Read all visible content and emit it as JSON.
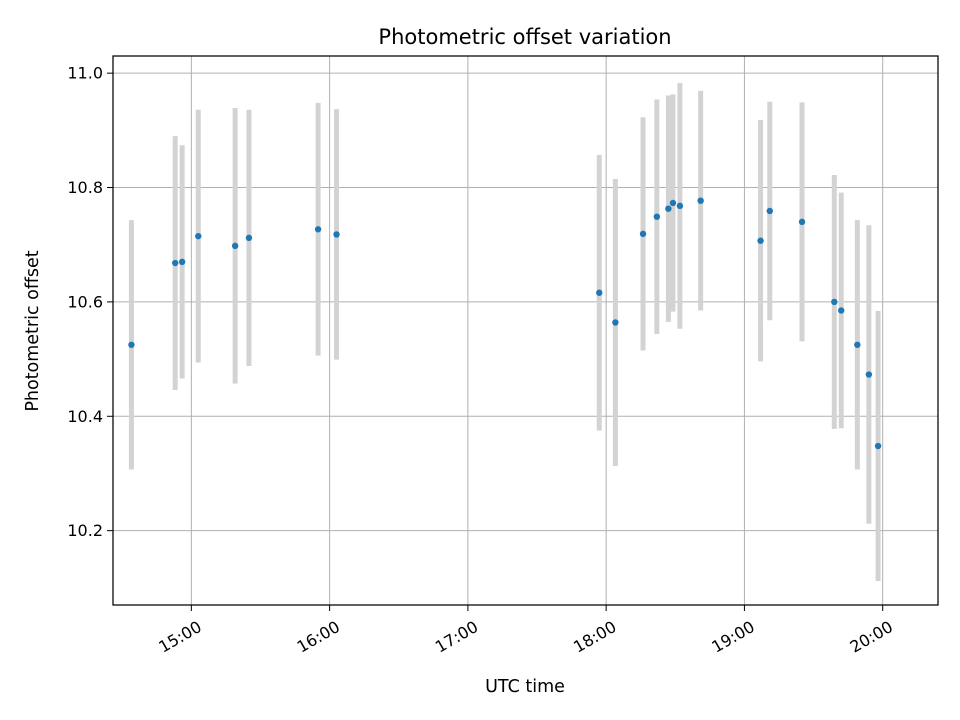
{
  "chart_data": {
    "type": "scatter",
    "title": "Photometric offset variation",
    "xlabel": "UTC time",
    "ylabel": "Photometric offset",
    "x_ticks": [
      "15:00",
      "16:00",
      "17:00",
      "18:00",
      "19:00",
      "20:00"
    ],
    "y_ticks": [
      "10.2",
      "10.4",
      "10.6",
      "10.8",
      "11.0"
    ],
    "xlim": [
      "14:26",
      "20:24"
    ],
    "ylim": [
      10.07,
      11.03
    ],
    "grid": true,
    "colors": {
      "points": "#1f77b4",
      "error_bars": "#d3d3d3",
      "grid": "#b0b0b0"
    },
    "points": [
      {
        "x": "14:34",
        "y": 10.525,
        "yerr": 0.218
      },
      {
        "x": "14:53",
        "y": 10.668,
        "yerr": 0.222
      },
      {
        "x": "14:56",
        "y": 10.67,
        "yerr": 0.204
      },
      {
        "x": "15:03",
        "y": 10.715,
        "yerr": 0.221
      },
      {
        "x": "15:19",
        "y": 10.698,
        "yerr": 0.241
      },
      {
        "x": "15:25",
        "y": 10.712,
        "yerr": 0.224
      },
      {
        "x": "15:55",
        "y": 10.727,
        "yerr": 0.221
      },
      {
        "x": "16:03",
        "y": 10.718,
        "yerr": 0.219
      },
      {
        "x": "17:57",
        "y": 10.616,
        "yerr": 0.241
      },
      {
        "x": "18:04",
        "y": 10.564,
        "yerr": 0.251
      },
      {
        "x": "18:16",
        "y": 10.719,
        "yerr": 0.204
      },
      {
        "x": "18:22",
        "y": 10.749,
        "yerr": 0.205
      },
      {
        "x": "18:27",
        "y": 10.763,
        "yerr": 0.198
      },
      {
        "x": "18:29",
        "y": 10.773,
        "yerr": 0.19
      },
      {
        "x": "18:32",
        "y": 10.768,
        "yerr": 0.215
      },
      {
        "x": "18:41",
        "y": 10.777,
        "yerr": 0.192
      },
      {
        "x": "19:07",
        "y": 10.707,
        "yerr": 0.211
      },
      {
        "x": "19:11",
        "y": 10.759,
        "yerr": 0.191
      },
      {
        "x": "19:25",
        "y": 10.74,
        "yerr": 0.209
      },
      {
        "x": "19:39",
        "y": 10.6,
        "yerr": 0.222
      },
      {
        "x": "19:42",
        "y": 10.585,
        "yerr": 0.206
      },
      {
        "x": "19:49",
        "y": 10.525,
        "yerr": 0.218
      },
      {
        "x": "19:54",
        "y": 10.473,
        "yerr": 0.261
      },
      {
        "x": "19:58",
        "y": 10.348,
        "yerr": 0.236
      }
    ]
  }
}
